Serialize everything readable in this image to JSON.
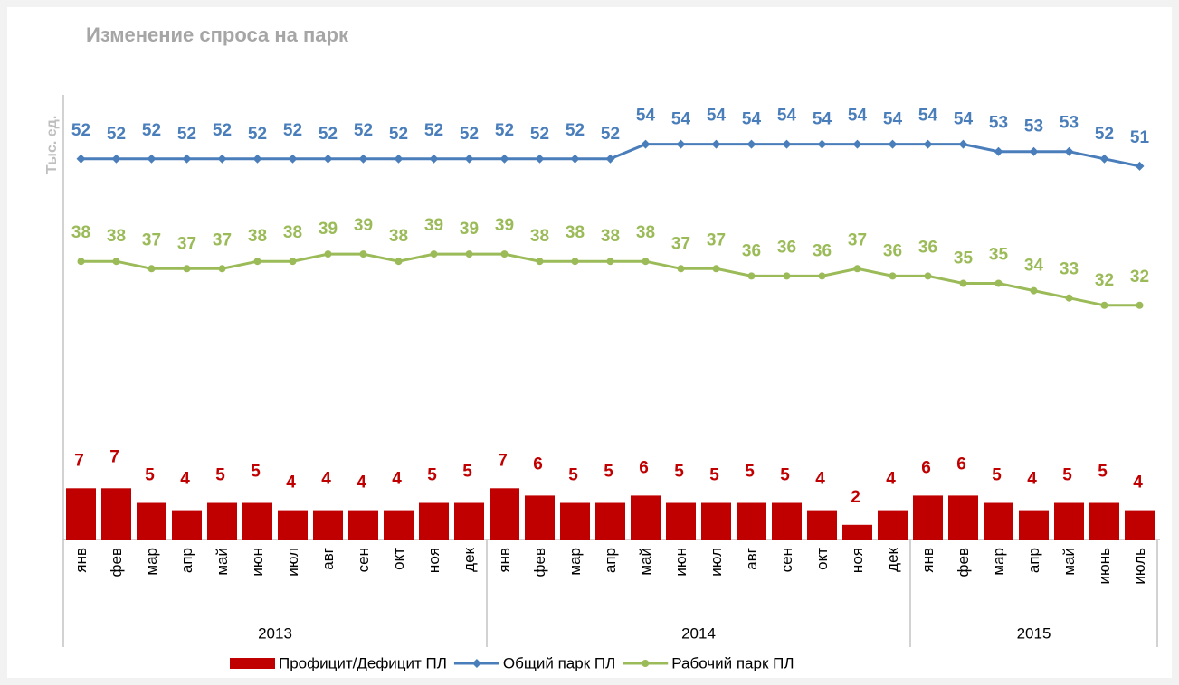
{
  "chart_data": {
    "type": "bar_line",
    "title": "Изменение спроса на парк",
    "y_label": "Тыс. ед.",
    "categories": [
      "янв",
      "фев",
      "мар",
      "апр",
      "май",
      "июн",
      "июл",
      "авг",
      "сен",
      "окт",
      "ноя",
      "дек",
      "янв",
      "фев",
      "мар",
      "апр",
      "май",
      "июн",
      "июл",
      "авг",
      "сен",
      "окт",
      "ноя",
      "дек",
      "янв",
      "фев",
      "мар",
      "апр",
      "май",
      "июнь",
      "июль"
    ],
    "groups": [
      {
        "label": "2013",
        "count": 12
      },
      {
        "label": "2014",
        "count": 12
      },
      {
        "label": "2015",
        "count": 7
      }
    ],
    "series": [
      {
        "name": "Профицит/Дефицит ПЛ",
        "kind": "bar",
        "color": "#c00000",
        "values": [
          7,
          7,
          5,
          4,
          5,
          5,
          4,
          4,
          4,
          4,
          5,
          5,
          7,
          6,
          5,
          5,
          6,
          5,
          5,
          5,
          5,
          4,
          2,
          4,
          6,
          6,
          5,
          4,
          5,
          5,
          4
        ]
      },
      {
        "name": "Общий парк ПЛ",
        "kind": "line",
        "color": "#4a7ebb",
        "values": [
          52,
          52,
          52,
          52,
          52,
          52,
          52,
          52,
          52,
          52,
          52,
          52,
          52,
          52,
          52,
          52,
          54,
          54,
          54,
          54,
          54,
          54,
          54,
          54,
          54,
          54,
          53,
          53,
          53,
          52,
          51
        ]
      },
      {
        "name": "Рабочий парк ПЛ",
        "kind": "line",
        "color": "#9bbb59",
        "values": [
          38,
          38,
          37,
          37,
          37,
          38,
          38,
          39,
          39,
          38,
          39,
          39,
          39,
          38,
          38,
          38,
          38,
          37,
          37,
          36,
          36,
          36,
          37,
          36,
          36,
          35,
          35,
          34,
          33,
          32,
          32
        ]
      }
    ]
  }
}
